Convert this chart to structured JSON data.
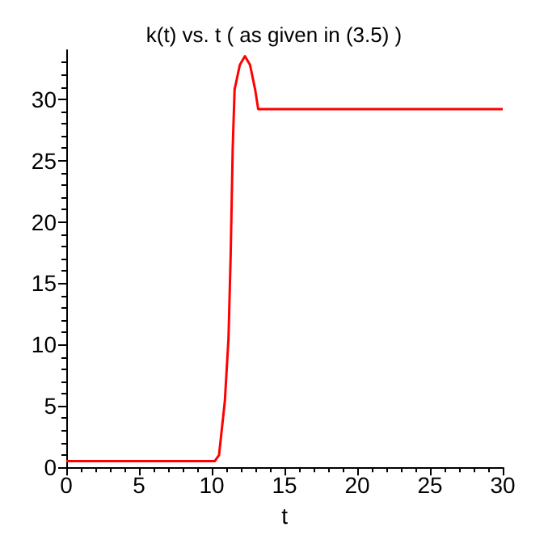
{
  "chart_data": {
    "type": "line",
    "title": "k(t) vs. t ( as given in (3.5) )",
    "xlabel": "t",
    "x": [
      0,
      10.2,
      10.5,
      10.9,
      11.15,
      11.3,
      11.44,
      11.57,
      11.93,
      12.28,
      12.63,
      12.98,
      13.19,
      30
    ],
    "series": [
      {
        "color": "#ff0000",
        "values": [
          0.5,
          0.5,
          1,
          5.4,
          10.5,
          17.3,
          26,
          30.8,
          32.8,
          33.5,
          32.8,
          30.8,
          29.2,
          29.2
        ]
      }
    ],
    "xlim": [
      0,
      30
    ],
    "xticks": [
      0,
      5,
      10,
      15,
      20,
      25,
      30
    ],
    "ylim": [
      0,
      34
    ],
    "yticks": [
      0,
      5,
      10,
      15,
      20,
      25,
      30
    ],
    "grid": false,
    "marker": "none",
    "line_style": "solid"
  }
}
